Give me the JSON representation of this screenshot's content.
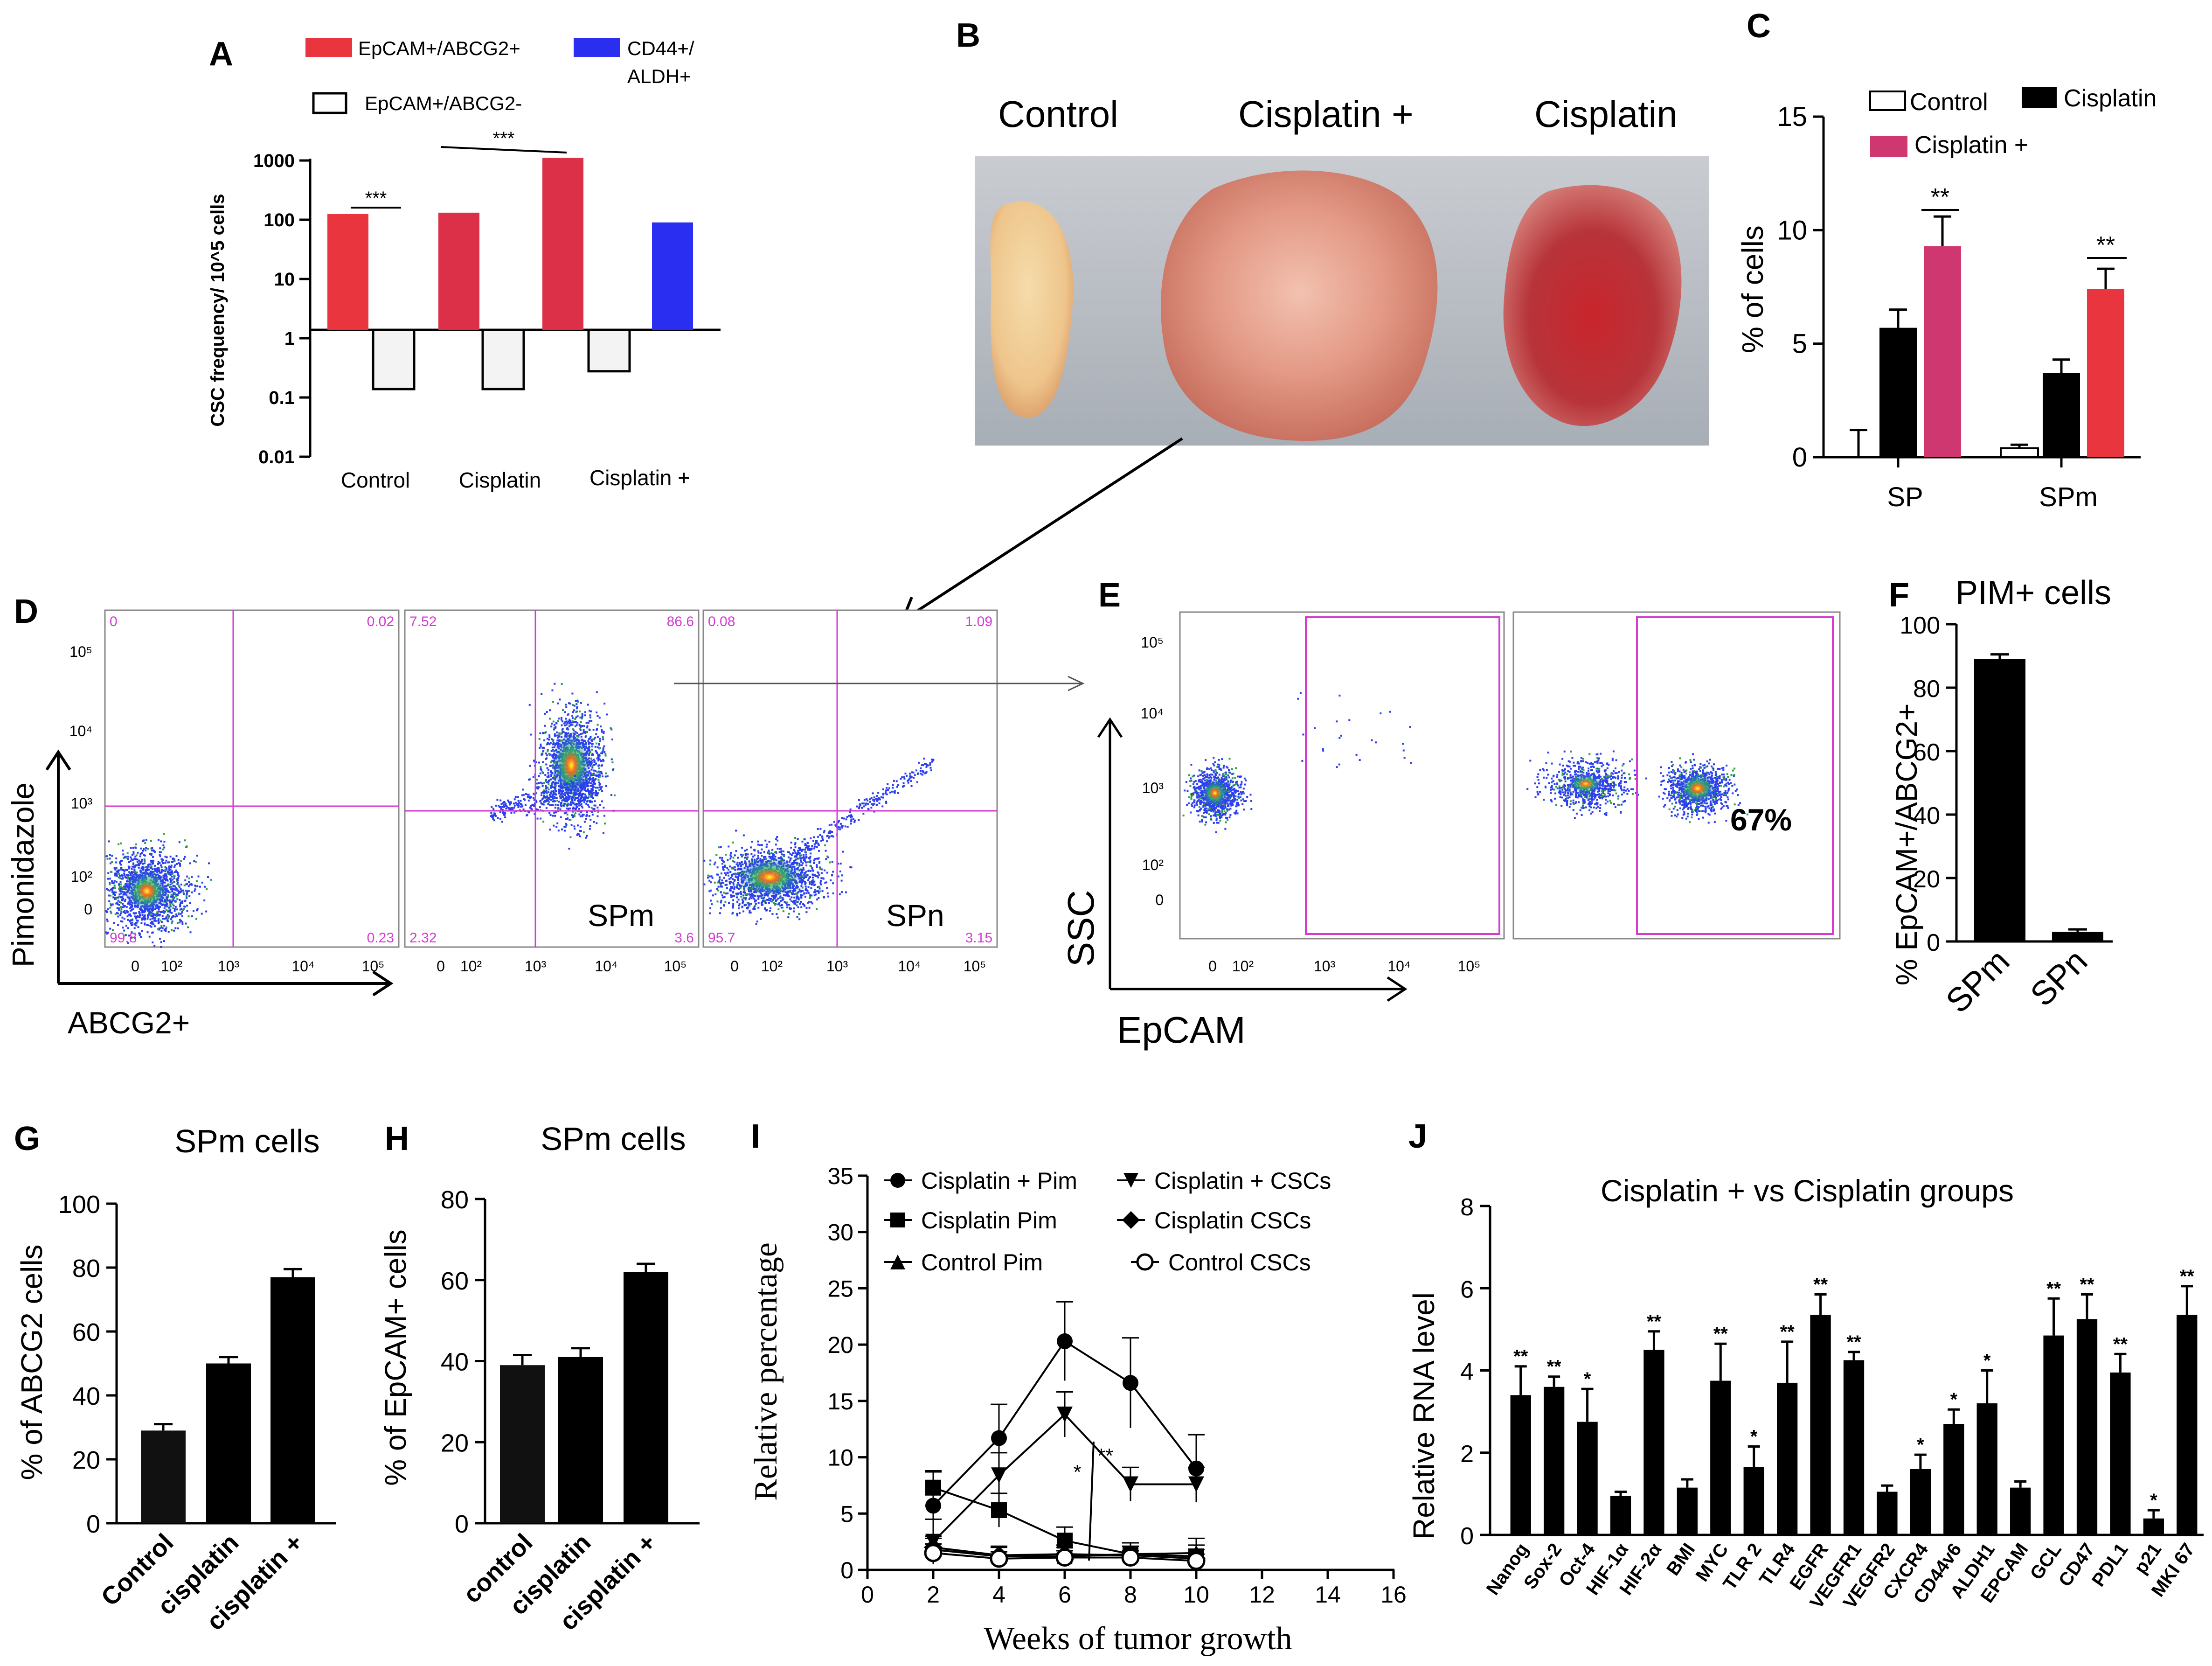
{
  "colors": {
    "black": "#000000",
    "red": "#e8353e",
    "crimson": "#dc2f48",
    "blue": "#2a2ef0",
    "magenta": "#cf3770",
    "pale": "#f3f3f3",
    "gate": "#d23cd2",
    "tissue": "#c03a2c"
  },
  "panels": {
    "A": "A",
    "B": "B",
    "C": "C",
    "D": "D",
    "E": "E",
    "F": "F",
    "G": "G",
    "H": "H",
    "I": "I",
    "J": "J"
  },
  "A": {
    "legend": [
      "EpCAM+/ABCG2+",
      "CD44+/",
      "ALDH+",
      "EpCAM+/ABCG2-"
    ],
    "ylabel": "CSC frequency/ 10^5 cells",
    "yticks": [
      "1000",
      "100",
      "10",
      "1",
      "0.1",
      "0.01"
    ],
    "groups": [
      "Control",
      "Cisplatin",
      "Cisplatin +"
    ],
    "sig": [
      "***",
      "***"
    ]
  },
  "B": {
    "labels": [
      "Control",
      "Cisplatin +",
      "Cisplatin"
    ]
  },
  "D": {
    "ylabel": "Pimonidazole",
    "xlabel": "ABCG2+",
    "yticks": [
      "10⁵",
      "10⁴",
      "10³",
      "10²",
      "0"
    ],
    "xticks": [
      "0",
      "10²",
      "10³",
      "10⁴",
      "10⁵"
    ],
    "plots": [
      {
        "q": [
          "0",
          "0.02",
          "99.8",
          "0.23"
        ],
        "tag": ""
      },
      {
        "q": [
          "7.52",
          "86.6",
          "2.32",
          "3.6"
        ],
        "tag": "SPm"
      },
      {
        "q": [
          "0.08",
          "1.09",
          "95.7",
          "3.15"
        ],
        "tag": "SPn"
      }
    ]
  },
  "E": {
    "ylabel": "SSC",
    "xlabel": "EpCAM",
    "pct": "67%",
    "yticks": [
      "10⁵",
      "10⁴",
      "10³",
      "10²",
      "0"
    ],
    "xticks": [
      "0",
      "10²",
      "10³",
      "10⁴",
      "10⁵"
    ]
  },
  "chart_data": [
    {
      "id": "A",
      "type": "bar",
      "title": "",
      "ylabel": "CSC frequency/ 10^5 cells",
      "yscale": "log",
      "ylim": [
        0.01,
        1000
      ],
      "categories": [
        "Control",
        "Cisplatin",
        "Cisplatin +"
      ],
      "series": [
        {
          "name": "EpCAM+/ABCG2+",
          "values": [
            90,
            95,
            800
          ]
        },
        {
          "name": "EpCAM+/ABCG2-",
          "values": [
            0.1,
            0.1,
            0.2
          ]
        },
        {
          "name": "CD44+/ALDH+",
          "values": [
            null,
            null,
            65
          ]
        }
      ]
    },
    {
      "id": "C",
      "type": "bar",
      "ylabel": "% of cells",
      "ylim": [
        0,
        15
      ],
      "yticks": [
        "0",
        "5",
        "10",
        "15"
      ],
      "categories": [
        "SP",
        "SPm"
      ],
      "legend": [
        "Control",
        "Cisplatin",
        "Cisplatin +"
      ],
      "series": [
        {
          "name": "Control",
          "values": [
            0,
            0.4
          ],
          "err": [
            1.2,
            0.15
          ]
        },
        {
          "name": "Cisplatin",
          "values": [
            5.7,
            3.7
          ],
          "err": [
            0.8,
            0.6
          ]
        },
        {
          "name": "Cisplatin +",
          "values": [
            9.3,
            7.4
          ],
          "err": [
            1.3,
            0.9
          ]
        }
      ],
      "sig": [
        "**",
        "**"
      ]
    },
    {
      "id": "F",
      "type": "bar",
      "title": "PIM+ cells",
      "ylabel": "% EpCAM+/ABCG2+",
      "ylim": [
        0,
        100
      ],
      "yticks": [
        "0",
        "20",
        "40",
        "60",
        "80",
        "100"
      ],
      "categories": [
        "SPm",
        "SPn"
      ],
      "values": [
        89,
        3
      ],
      "err": [
        1.5,
        0.8
      ]
    },
    {
      "id": "G",
      "type": "bar",
      "title": "SPm cells",
      "ylabel": "% of ABCG2 cells",
      "ylim": [
        0,
        100
      ],
      "yticks": [
        "0",
        "20",
        "40",
        "60",
        "80",
        "100"
      ],
      "categories": [
        "Control",
        "cisplatin",
        "cisplatin +"
      ],
      "values": [
        29,
        50,
        77
      ],
      "err": [
        2,
        2,
        2.5
      ]
    },
    {
      "id": "H",
      "type": "bar",
      "title": "SPm cells",
      "ylabel": "% of EpCAM+ cells",
      "ylim": [
        0,
        80
      ],
      "yticks": [
        "0",
        "20",
        "40",
        "60",
        "80"
      ],
      "categories": [
        "control",
        "cisplatin",
        "cisplatin +"
      ],
      "values": [
        39,
        41,
        62
      ],
      "err": [
        2.5,
        2.2,
        2
      ]
    },
    {
      "id": "I",
      "type": "line",
      "xlabel": "Weeks of tumor growth",
      "ylabel": "Relative percentage",
      "xlim": [
        0,
        16
      ],
      "ylim": [
        0,
        35
      ],
      "xticks": [
        "0",
        "2",
        "4",
        "6",
        "8",
        "10",
        "12",
        "14",
        "16"
      ],
      "yticks": [
        "0",
        "5",
        "10",
        "15",
        "20",
        "25",
        "30",
        "35"
      ],
      "x": [
        2,
        4,
        6,
        8,
        10
      ],
      "series": [
        {
          "name": "Cisplatin + Pim",
          "values": [
            5.7,
            11.7,
            20.3,
            16.6,
            9.0
          ],
          "err": [
            3,
            3,
            3.5,
            4,
            3
          ]
        },
        {
          "name": "Cisplatin + CSCs",
          "values": [
            2.5,
            8.4,
            13.8,
            7.6,
            7.6
          ],
          "err": [
            2,
            2,
            2,
            1.5,
            1.5
          ]
        },
        {
          "name": "Cisplatin Pim",
          "values": [
            7.3,
            5.3,
            2.6,
            1.4,
            1.2
          ],
          "err": [
            1.5,
            1.5,
            1.2,
            1,
            1
          ]
        },
        {
          "name": "Cisplatin CSCs",
          "values": [
            2.0,
            1.3,
            1.4,
            1.3,
            1.0
          ],
          "err": [
            1,
            0.8,
            0.8,
            0.8,
            0.8
          ]
        },
        {
          "name": "Control Pim",
          "values": [
            1.8,
            1.2,
            1.2,
            1.4,
            1.5
          ],
          "err": [
            1,
            0.8,
            0.8,
            1,
            1.3
          ]
        },
        {
          "name": "Control CSCs",
          "values": [
            1.5,
            1.0,
            1.1,
            1.1,
            0.8
          ],
          "err": [
            0.8,
            0.6,
            0.6,
            0.6,
            0.6
          ]
        }
      ],
      "sig": [
        "*",
        "**"
      ]
    },
    {
      "id": "J",
      "type": "bar",
      "title": "Cisplatin + vs Cisplatin groups",
      "ylabel": "Relative RNA level",
      "ylim": [
        0,
        8
      ],
      "yticks": [
        "0",
        "2",
        "4",
        "6",
        "8"
      ],
      "categories": [
        "Nanog",
        "Sox-2",
        "Oct-4",
        "HIF-1α",
        "HIF-2α",
        "BMI",
        "MYC",
        "TLR 2",
        "TLR4",
        "EGFR",
        "VEGFR1",
        "VEGFR2",
        "CXCR4",
        "CD44v6",
        "ALDH1",
        "EPCAM",
        "GCL",
        "CD47",
        "PDL1",
        "p21",
        "MKI 67"
      ],
      "values": [
        3.4,
        3.6,
        2.75,
        0.95,
        4.5,
        1.15,
        3.75,
        1.65,
        3.7,
        5.35,
        4.25,
        1.05,
        1.6,
        2.7,
        3.2,
        1.15,
        4.85,
        5.25,
        3.95,
        0.4,
        5.35
      ],
      "err": [
        0.7,
        0.25,
        0.8,
        0.1,
        0.45,
        0.2,
        0.9,
        0.5,
        1.0,
        0.5,
        0.2,
        0.15,
        0.35,
        0.35,
        0.8,
        0.15,
        0.9,
        0.6,
        0.45,
        0.2,
        0.7
      ],
      "sig": [
        "**",
        "**",
        "*",
        "",
        "**",
        "",
        "**",
        "*",
        "**",
        "**",
        "**",
        "",
        "*",
        "*",
        "*",
        "",
        "**",
        "**",
        "**",
        "*",
        "**"
      ]
    }
  ]
}
